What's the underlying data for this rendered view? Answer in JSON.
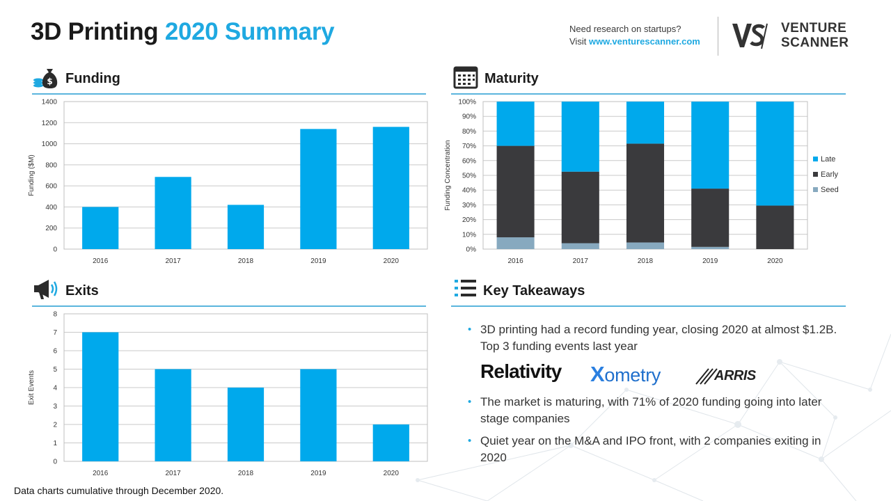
{
  "header": {
    "title_part1": "3D Printing",
    "title_part2": "2020 Summary",
    "research_line1": "Need research on startups?",
    "research_visit": "Visit",
    "research_url": "www.venturescanner.com",
    "brand_line1": "VENTURE",
    "brand_line2": "SCANNER",
    "accent_color": "#1fa9e1"
  },
  "sections": {
    "funding": {
      "title": "Funding",
      "icon": "money-bag-icon"
    },
    "maturity": {
      "title": "Maturity",
      "icon": "calendar-icon"
    },
    "exits": {
      "title": "Exits",
      "icon": "megaphone-icon"
    },
    "takeaways": {
      "title": "Key Takeaways",
      "icon": "list-icon"
    }
  },
  "chart_data": [
    {
      "id": "funding",
      "type": "bar",
      "categories": [
        "2016",
        "2017",
        "2018",
        "2019",
        "2020"
      ],
      "values": [
        400,
        685,
        420,
        1140,
        1160
      ],
      "ylabel": "Funding ($M)",
      "ylim": [
        0,
        1400
      ],
      "yticks": [
        0,
        200,
        400,
        600,
        800,
        1000,
        1200,
        1400
      ],
      "grid": true,
      "color": "#00a9ec"
    },
    {
      "id": "maturity",
      "type": "bar",
      "stacked": true,
      "categories": [
        "2016",
        "2017",
        "2018",
        "2019",
        "2020"
      ],
      "series": [
        {
          "name": "Seed",
          "values": [
            8,
            4,
            4.5,
            1.5,
            0
          ],
          "color": "#87a9bf"
        },
        {
          "name": "Early",
          "values": [
            62,
            48.5,
            67,
            39.5,
            29.5
          ],
          "color": "#3a3a3d"
        },
        {
          "name": "Late",
          "values": [
            30,
            47.5,
            28.5,
            59,
            70.5
          ],
          "color": "#00a9ec"
        }
      ],
      "ylabel": "Funding Concentration",
      "ylim": [
        0,
        100
      ],
      "yticks": [
        "0%",
        "10%",
        "20%",
        "30%",
        "40%",
        "50%",
        "60%",
        "70%",
        "80%",
        "90%",
        "100%"
      ],
      "legend_position": "right",
      "grid": true
    },
    {
      "id": "exits",
      "type": "bar",
      "categories": [
        "2016",
        "2017",
        "2018",
        "2019",
        "2020"
      ],
      "values": [
        7,
        5,
        4,
        5,
        2
      ],
      "ylabel": "Exit Events",
      "ylim": [
        0,
        8
      ],
      "yticks": [
        0,
        1,
        2,
        3,
        4,
        5,
        6,
        7,
        8
      ],
      "grid": true,
      "color": "#00a9ec"
    }
  ],
  "takeaways": {
    "items": [
      "3D printing had a record funding year, closing 2020 at almost $1.2B. Top 3 funding events last year",
      "The market is maturing, with 71% of 2020 funding going into later stage companies",
      "Quiet year on the M&A and IPO front, with 2 companies exiting in 2020"
    ],
    "logos": {
      "relativity": "Relativity",
      "xometry_x": "X",
      "xometry_rest": "ometry",
      "arris": "ARRIS"
    }
  },
  "footnote": "Data charts cumulative through December 2020."
}
